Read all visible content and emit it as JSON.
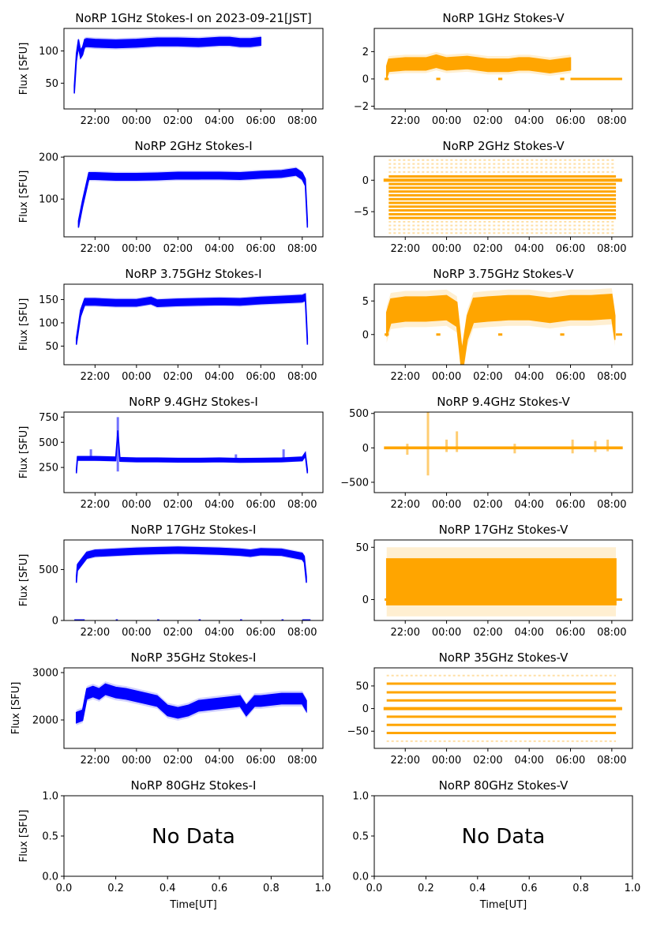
{
  "figure": {
    "x_tick_labels_time": [
      "22:00",
      "00:00",
      "02:00",
      "04:00",
      "06:00",
      "08:00"
    ],
    "x_label_bottom": "Time[UT]",
    "y_label": "Flux [SFU]",
    "no_data_text": "No Data",
    "colors": {
      "stokes_i": "#0000ff",
      "stokes_v": "#ffa500"
    }
  },
  "chart_data": [
    {
      "id": "1ghz-i",
      "type": "scatter",
      "title": "NoRP 1GHz Stokes-I on 2023-09-21[JST]",
      "ylabel": "Flux [SFU]",
      "xlabel": "",
      "color": "#0000ff",
      "xlim_hours": [
        20.5,
        33.0
      ],
      "ylim": [
        10,
        135
      ],
      "yticks": [
        50,
        100
      ],
      "ytick_labels": [
        "50",
        "100"
      ],
      "xtick_labels": [
        "22:00",
        "00:00",
        "02:00",
        "04:00",
        "06:00",
        "08:00"
      ],
      "x_hours": [
        21.0,
        21.1,
        21.2,
        21.3,
        21.4,
        21.5,
        21.6,
        22.0,
        23.0,
        24.0,
        25.0,
        26.0,
        27.0,
        28.0,
        28.5,
        29.0,
        29.5,
        30.0
      ],
      "y": [
        40,
        90,
        112,
        95,
        100,
        112,
        113,
        112,
        111,
        112,
        114,
        114,
        113,
        115,
        115,
        113,
        113,
        115
      ],
      "band": 6
    },
    {
      "id": "1ghz-v",
      "type": "scatter",
      "title": "NoRP 1GHz Stokes-V",
      "ylabel": "",
      "xlabel": "",
      "color": "#ffa500",
      "xlim_hours": [
        20.5,
        33.0
      ],
      "ylim": [
        -2.2,
        3.7
      ],
      "yticks": [
        -2,
        0,
        2
      ],
      "ytick_labels": [
        "−2",
        "0",
        "2"
      ],
      "xtick_labels": [
        "22:00",
        "00:00",
        "02:00",
        "04:00",
        "06:00",
        "08:00"
      ],
      "x_hours": [
        21.1,
        21.2,
        22.0,
        23.0,
        23.5,
        24.0,
        25.0,
        26.0,
        27.0,
        27.5,
        28.0,
        29.0,
        29.5,
        30.0
      ],
      "y": [
        0.5,
        1.0,
        1.1,
        1.1,
        1.3,
        1.1,
        1.2,
        1.0,
        1.0,
        1.1,
        1.1,
        0.9,
        1.0,
        1.1
      ],
      "band": 0.45,
      "zero_segments": [
        [
          21.0,
          21.2
        ],
        [
          23.5,
          23.7
        ],
        [
          26.5,
          26.7
        ],
        [
          29.5,
          29.7
        ],
        [
          30.0,
          32.5
        ]
      ]
    },
    {
      "id": "2ghz-i",
      "type": "scatter",
      "title": "NoRP 2GHz Stokes-I",
      "ylabel": "Flux [SFU]",
      "xlabel": "",
      "color": "#0000ff",
      "xlim_hours": [
        20.5,
        33.0
      ],
      "ylim": [
        10,
        202
      ],
      "yticks": [
        100,
        200
      ],
      "ytick_labels": [
        "100",
        "200"
      ],
      "xtick_labels": [
        "22:00",
        "00:00",
        "02:00",
        "04:00",
        "06:00",
        "08:00"
      ],
      "x_hours": [
        21.2,
        21.4,
        21.7,
        22.0,
        23.0,
        24.0,
        25.0,
        26.0,
        27.0,
        28.0,
        29.0,
        30.0,
        31.0,
        31.7,
        32.0,
        32.15,
        32.25
      ],
      "y": [
        40,
        90,
        155,
        155,
        153,
        153,
        154,
        156,
        156,
        156,
        155,
        158,
        160,
        165,
        155,
        140,
        40
      ],
      "band": 8
    },
    {
      "id": "2ghz-v",
      "type": "levels",
      "title": "NoRP 2GHz Stokes-V",
      "ylabel": "",
      "xlabel": "",
      "color": "#ffa500",
      "xlim_hours": [
        20.5,
        33.0
      ],
      "ylim": [
        -9,
        3.8
      ],
      "yticks": [
        -5,
        0
      ],
      "ytick_labels": [
        "−5",
        "0"
      ],
      "xtick_labels": [
        "22:00",
        "00:00",
        "02:00",
        "04:00",
        "06:00",
        "08:00"
      ],
      "x_range_hours": [
        21.2,
        32.2
      ],
      "levels": [
        0.6,
        0,
        -0.6,
        -1.2,
        -1.8,
        -2.4,
        -3.0,
        -3.6,
        -4.2,
        -4.8,
        -5.4,
        -6.0
      ],
      "sparse_levels": [
        3.2,
        2.6,
        2.0,
        1.3,
        -6.6,
        -7.2,
        -7.8,
        -8.4
      ]
    },
    {
      "id": "375ghz-i",
      "type": "scatter",
      "title": "NoRP 3.75GHz Stokes-I",
      "ylabel": "Flux [SFU]",
      "xlabel": "",
      "color": "#0000ff",
      "xlim_hours": [
        20.5,
        33.0
      ],
      "ylim": [
        10,
        183
      ],
      "yticks": [
        50,
        100,
        150
      ],
      "ytick_labels": [
        "50",
        "100",
        "150"
      ],
      "xtick_labels": [
        "22:00",
        "00:00",
        "02:00",
        "04:00",
        "06:00",
        "08:00"
      ],
      "x_hours": [
        21.1,
        21.3,
        21.5,
        22.0,
        23.0,
        24.0,
        24.7,
        25.0,
        26.0,
        27.0,
        28.0,
        29.0,
        30.0,
        31.0,
        32.0,
        32.15,
        32.25
      ],
      "y": [
        60,
        120,
        145,
        145,
        143,
        143,
        148,
        142,
        144,
        145,
        146,
        145,
        148,
        150,
        152,
        155,
        60
      ],
      "band": 7
    },
    {
      "id": "375ghz-v",
      "type": "scatter",
      "title": "NoRP 3.75GHz Stokes-V",
      "ylabel": "",
      "xlabel": "",
      "color": "#ffa500",
      "xlim_hours": [
        20.5,
        33.0
      ],
      "ylim": [
        -4.5,
        7.5
      ],
      "yticks": [
        0,
        5
      ],
      "ytick_labels": [
        "0",
        "5"
      ],
      "xtick_labels": [
        "22:00",
        "00:00",
        "02:00",
        "04:00",
        "06:00",
        "08:00"
      ],
      "x_hours": [
        21.1,
        21.3,
        22.0,
        23.0,
        24.0,
        24.5,
        24.75,
        25.0,
        25.3,
        26.0,
        27.0,
        28.0,
        29.0,
        30.0,
        31.0,
        32.0,
        32.15
      ],
      "y": [
        1.5,
        3.5,
        3.8,
        3.8,
        4.0,
        3.0,
        -4.2,
        1.0,
        3.6,
        3.8,
        4.0,
        4.0,
        3.6,
        4.0,
        4.0,
        4.2,
        1.0
      ],
      "band": 1.8,
      "zero_segments": [
        [
          21.0,
          21.2
        ],
        [
          23.5,
          23.7
        ],
        [
          26.5,
          26.7
        ],
        [
          29.5,
          29.7
        ],
        [
          32.2,
          32.5
        ]
      ]
    },
    {
      "id": "94ghz-i",
      "type": "scatter",
      "title": "NoRP 9.4GHz Stokes-I",
      "ylabel": "Flux [SFU]",
      "xlabel": "",
      "color": "#0000ff",
      "xlim_hours": [
        20.5,
        33.0
      ],
      "ylim": [
        0,
        800
      ],
      "yticks": [
        250,
        500,
        750
      ],
      "ytick_labels": [
        "250",
        "500",
        "750"
      ],
      "xtick_labels": [
        "22:00",
        "00:00",
        "02:00",
        "04:00",
        "06:00",
        "08:00"
      ],
      "x_hours": [
        21.1,
        21.15,
        22.0,
        23.0,
        23.1,
        23.2,
        24.0,
        25.0,
        26.0,
        27.0,
        28.0,
        29.0,
        30.0,
        31.0,
        32.0,
        32.15,
        32.25
      ],
      "y": [
        210,
        340,
        340,
        335,
        600,
        330,
        325,
        325,
        322,
        322,
        325,
        320,
        322,
        325,
        335,
        380,
        210
      ],
      "band": 18,
      "spikes": [
        {
          "x": 23.1,
          "min": 210,
          "max": 750
        },
        {
          "x": 21.8,
          "min": 320,
          "max": 430
        },
        {
          "x": 31.1,
          "min": 310,
          "max": 430
        },
        {
          "x": 28.8,
          "min": 300,
          "max": 380
        }
      ]
    },
    {
      "id": "94ghz-v",
      "type": "scatter",
      "title": "NoRP 9.4GHz Stokes-V",
      "ylabel": "",
      "xlabel": "",
      "color": "#ffa500",
      "xlim_hours": [
        20.5,
        33.0
      ],
      "ylim": [
        -650,
        520
      ],
      "yticks": [
        -500,
        0,
        500
      ],
      "ytick_labels": [
        "−500",
        "0",
        "500"
      ],
      "xtick_labels": [
        "22:00",
        "00:00",
        "02:00",
        "04:00",
        "06:00",
        "08:00"
      ],
      "x_hours": [
        21.0,
        32.5
      ],
      "y": [
        0,
        0
      ],
      "band": 12,
      "spikes": [
        {
          "x": 23.1,
          "min": -400,
          "max": 520
        },
        {
          "x": 22.1,
          "min": -100,
          "max": 60
        },
        {
          "x": 24.0,
          "min": -60,
          "max": 120
        },
        {
          "x": 24.5,
          "min": -60,
          "max": 240
        },
        {
          "x": 27.3,
          "min": -80,
          "max": 60
        },
        {
          "x": 30.1,
          "min": -80,
          "max": 120
        },
        {
          "x": 31.2,
          "min": -60,
          "max": 100
        },
        {
          "x": 31.8,
          "min": -50,
          "max": 120
        }
      ]
    },
    {
      "id": "17ghz-i",
      "type": "scatter",
      "title": "NoRP 17GHz Stokes-I",
      "ylabel": "Flux [SFU]",
      "xlabel": "",
      "color": "#0000ff",
      "xlim_hours": [
        20.5,
        33.0
      ],
      "ylim": [
        0,
        790
      ],
      "yticks": [
        0,
        500
      ],
      "ytick_labels": [
        "0",
        "500"
      ],
      "xtick_labels": [
        "22:00",
        "00:00",
        "02:00",
        "04:00",
        "06:00",
        "08:00"
      ],
      "x_hours": [
        21.1,
        21.15,
        21.3,
        21.6,
        22.0,
        23.0,
        24.0,
        25.0,
        26.0,
        27.0,
        28.0,
        29.0,
        29.5,
        30.0,
        31.0,
        32.0,
        32.1,
        32.2
      ],
      "y": [
        400,
        520,
        560,
        640,
        660,
        670,
        680,
        685,
        690,
        685,
        680,
        670,
        660,
        675,
        670,
        630,
        600,
        400
      ],
      "band": 30,
      "zero_segments": [
        [
          21.0,
          21.5
        ],
        [
          23.0,
          23.1
        ],
        [
          25.0,
          25.1
        ],
        [
          27.0,
          27.1
        ],
        [
          29.0,
          29.1
        ],
        [
          31.0,
          31.1
        ],
        [
          32.0,
          32.4
        ]
      ]
    },
    {
      "id": "17ghz-v",
      "type": "scatter",
      "title": "NoRP 17GHz Stokes-V",
      "ylabel": "",
      "xlabel": "",
      "color": "#ffa500",
      "xlim_hours": [
        20.5,
        33.0
      ],
      "ylim": [
        -20,
        57
      ],
      "yticks": [
        0,
        50
      ],
      "ytick_labels": [
        "0",
        "50"
      ],
      "xtick_labels": [
        "22:00",
        "00:00",
        "02:00",
        "04:00",
        "06:00",
        "08:00"
      ],
      "x_hours": [
        21.1,
        32.2
      ],
      "y": [
        17,
        17
      ],
      "band": 22,
      "zero_segments": [
        [
          21.0,
          32.5
        ]
      ]
    },
    {
      "id": "35ghz-i",
      "type": "scatter",
      "title": "NoRP 35GHz Stokes-I",
      "ylabel": "Flux [SFU]",
      "xlabel": "",
      "color": "#0000ff",
      "xlim_hours": [
        20.5,
        33.0
      ],
      "ylim": [
        1400,
        3100
      ],
      "yticks": [
        2000,
        3000
      ],
      "ytick_labels": [
        "2000",
        "3000"
      ],
      "xtick_labels": [
        "22:00",
        "00:00",
        "02:00",
        "04:00",
        "06:00",
        "08:00"
      ],
      "x_hours": [
        21.1,
        21.4,
        21.6,
        21.9,
        22.2,
        22.5,
        23.0,
        23.5,
        24.0,
        24.5,
        25.0,
        25.5,
        26.0,
        26.5,
        27.0,
        28.0,
        29.0,
        29.3,
        29.7,
        30.0,
        31.0,
        32.0,
        32.2
      ],
      "y": [
        2050,
        2100,
        2550,
        2600,
        2550,
        2650,
        2580,
        2550,
        2500,
        2450,
        2400,
        2200,
        2150,
        2200,
        2300,
        2350,
        2400,
        2200,
        2400,
        2400,
        2450,
        2450,
        2300
      ],
      "band": 110
    },
    {
      "id": "35ghz-v",
      "type": "levels",
      "title": "NoRP 35GHz Stokes-V",
      "ylabel": "",
      "xlabel": "",
      "color": "#ffa500",
      "xlim_hours": [
        20.5,
        33.0
      ],
      "ylim": [
        -88,
        90
      ],
      "yticks": [
        -50,
        0,
        50
      ],
      "ytick_labels": [
        "−50",
        "0",
        "50"
      ],
      "xtick_labels": [
        "22:00",
        "00:00",
        "02:00",
        "04:00",
        "06:00",
        "08:00"
      ],
      "x_range_hours": [
        21.1,
        32.2
      ],
      "levels": [
        55,
        36,
        18,
        0,
        -18,
        -36,
        -54
      ],
      "sparse_levels": [
        73,
        -72
      ]
    },
    {
      "id": "80ghz-i",
      "type": "empty",
      "title": "NoRP 80GHz Stokes-I",
      "ylabel": "Flux [SFU]",
      "xlabel": "Time[UT]",
      "color": "#0000ff",
      "xlim": [
        0,
        1
      ],
      "ylim": [
        0,
        1
      ],
      "yticks": [
        0,
        0.5,
        1
      ],
      "ytick_labels": [
        "0.0",
        "0.5",
        "1.0"
      ],
      "xtick_labels": [
        "0.0",
        "0.2",
        "0.4",
        "0.6",
        "0.8",
        "1.0"
      ],
      "annotation": "No Data"
    },
    {
      "id": "80ghz-v",
      "type": "empty",
      "title": "NoRP 80GHz Stokes-V",
      "ylabel": "",
      "xlabel": "Time[UT]",
      "color": "#ffa500",
      "xlim": [
        0,
        1
      ],
      "ylim": [
        0,
        1
      ],
      "yticks": [
        0,
        0.5,
        1
      ],
      "ytick_labels": [
        "0.0",
        "0.5",
        "1.0"
      ],
      "xtick_labels": [
        "0.0",
        "0.2",
        "0.4",
        "0.6",
        "0.8",
        "1.0"
      ],
      "annotation": "No Data"
    }
  ]
}
